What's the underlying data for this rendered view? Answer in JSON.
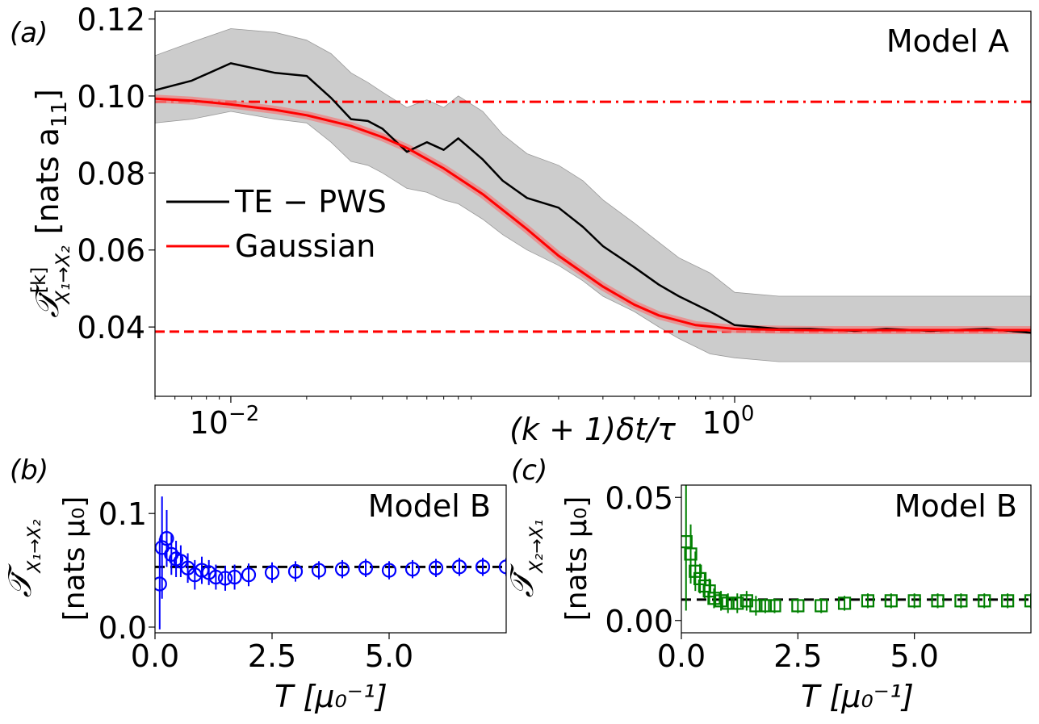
{
  "colors": {
    "te_pws": "#000000",
    "te_pws_band": "#b0b0b0",
    "gaussian": "#ff0000",
    "gaussian_band": "#f08080",
    "panel_b_points": "#0000ff",
    "panel_c_points": "#008000",
    "reference_dashed": "#000000"
  },
  "chart_data": [
    {
      "type": "line",
      "panel_label": "(a)",
      "model_label": "Model A",
      "xlabel": "(k + 1)δt/τ",
      "ylabel_main": "𝒯̇",
      "ylabel_sup": "[k]",
      "ylabel_sub": "X₁→X₂",
      "ylabel_unit": "[nats a",
      "ylabel_unit_sub": "11",
      "ylabel_unit_end": "]",
      "x_scale": "log",
      "xlim": [
        0.005,
        15
      ],
      "ylim": [
        0.022,
        0.122
      ],
      "x_ticks": [
        {
          "value": 0.01,
          "base": "10",
          "exp": "−2"
        },
        {
          "value": 1,
          "base": "10",
          "exp": "0"
        }
      ],
      "y_ticks": [
        "0.04",
        "0.06",
        "0.08",
        "0.10",
        "0.12"
      ],
      "legend_location": "center-left",
      "series": [
        {
          "name": "TE − PWS",
          "x": [
            0.005,
            0.007,
            0.01,
            0.015,
            0.02,
            0.025,
            0.03,
            0.035,
            0.04,
            0.05,
            0.06,
            0.07,
            0.08,
            0.1,
            0.12,
            0.15,
            0.2,
            0.25,
            0.3,
            0.4,
            0.5,
            0.6,
            0.8,
            1.0,
            1.5,
            2,
            3,
            4,
            6,
            10,
            15
          ],
          "y": [
            0.1015,
            0.104,
            0.1085,
            0.106,
            0.1052,
            0.0995,
            0.094,
            0.0935,
            0.0915,
            0.0855,
            0.088,
            0.086,
            0.089,
            0.0835,
            0.078,
            0.0735,
            0.071,
            0.066,
            0.061,
            0.0555,
            0.051,
            0.048,
            0.044,
            0.0405,
            0.0395,
            0.0395,
            0.039,
            0.0395,
            0.039,
            0.0395,
            0.0385
          ],
          "band_low": [
            0.093,
            0.094,
            0.096,
            0.094,
            0.093,
            0.088,
            0.083,
            0.082,
            0.08,
            0.076,
            0.075,
            0.073,
            0.072,
            0.068,
            0.064,
            0.06,
            0.056,
            0.052,
            0.048,
            0.044,
            0.04,
            0.037,
            0.033,
            0.032,
            0.031,
            0.031,
            0.031,
            0.031,
            0.031,
            0.031,
            0.031
          ],
          "band_high": [
            0.1105,
            0.114,
            0.1175,
            0.1165,
            0.1145,
            0.111,
            0.106,
            0.1035,
            0.101,
            0.097,
            0.099,
            0.097,
            0.1,
            0.096,
            0.09,
            0.085,
            0.082,
            0.078,
            0.073,
            0.067,
            0.062,
            0.058,
            0.054,
            0.049,
            0.048,
            0.048,
            0.048,
            0.048,
            0.048,
            0.048,
            0.048
          ]
        },
        {
          "name": "Gaussian",
          "x": [
            0.005,
            0.007,
            0.01,
            0.015,
            0.02,
            0.03,
            0.04,
            0.05,
            0.07,
            0.1,
            0.15,
            0.2,
            0.3,
            0.4,
            0.5,
            0.7,
            1.0,
            1.5,
            2,
            3,
            5,
            10,
            15
          ],
          "y": [
            0.0993,
            0.0988,
            0.0978,
            0.0964,
            0.095,
            0.0922,
            0.0893,
            0.0865,
            0.0812,
            0.0745,
            0.0654,
            0.0585,
            0.0505,
            0.0458,
            0.043,
            0.0405,
            0.0395,
            0.0393,
            0.0392,
            0.0392,
            0.0392,
            0.0392,
            0.0392
          ]
        }
      ],
      "reference_lines": [
        {
          "style": "dashdot",
          "y": 0.0985
        },
        {
          "style": "dashed",
          "y": 0.0388
        }
      ]
    },
    {
      "type": "scatter",
      "panel_label": "(b)",
      "model_label": "Model B",
      "xlabel": "T [μ₀⁻¹]",
      "ylabel_main": "𝒯̇",
      "ylabel_sub": "X₁→X₂",
      "ylabel_unit": "[nats μ₀]",
      "xlim": [
        0,
        7.5
      ],
      "ylim": [
        -0.005,
        0.125
      ],
      "x_ticks": [
        "0.0",
        "2.5",
        "5.0"
      ],
      "y_ticks": [
        "0.0",
        "0.1"
      ],
      "marker": "circle",
      "reference_y": 0.053,
      "x": [
        0.1,
        0.15,
        0.25,
        0.35,
        0.45,
        0.55,
        0.7,
        0.85,
        1.0,
        1.15,
        1.3,
        1.5,
        1.7,
        2.0,
        2.5,
        3.0,
        3.5,
        4.0,
        4.5,
        5.0,
        5.5,
        6.0,
        6.5,
        7.0,
        7.5
      ],
      "y": [
        0.038,
        0.07,
        0.078,
        0.064,
        0.06,
        0.058,
        0.052,
        0.046,
        0.05,
        0.048,
        0.044,
        0.043,
        0.044,
        0.046,
        0.048,
        0.049,
        0.05,
        0.051,
        0.052,
        0.05,
        0.051,
        0.052,
        0.053,
        0.053,
        0.053
      ],
      "yerr": [
        0.04,
        0.045,
        0.025,
        0.018,
        0.016,
        0.014,
        0.013,
        0.013,
        0.012,
        0.011,
        0.011,
        0.011,
        0.011,
        0.01,
        0.009,
        0.009,
        0.008,
        0.008,
        0.008,
        0.008,
        0.008,
        0.008,
        0.008,
        0.008,
        0.008
      ]
    },
    {
      "type": "scatter",
      "panel_label": "(c)",
      "model_label": "Model B",
      "xlabel": "T [μ₀⁻¹]",
      "ylabel_main": "𝒯̇",
      "ylabel_sub": "X₂→X₁",
      "ylabel_unit": "[nats μ₀]",
      "xlim": [
        0,
        7.5
      ],
      "ylim": [
        -0.005,
        0.055
      ],
      "x_ticks": [
        "0.0",
        "2.5",
        "5.0"
      ],
      "y_ticks": [
        "0.00",
        "0.05"
      ],
      "marker": "square",
      "reference_y": 0.0085,
      "x": [
        0.1,
        0.2,
        0.3,
        0.4,
        0.5,
        0.6,
        0.7,
        0.85,
        1.0,
        1.2,
        1.4,
        1.6,
        1.8,
        2.0,
        2.5,
        3.0,
        3.5,
        4.0,
        4.5,
        5.0,
        5.5,
        6.0,
        6.5,
        7.0,
        7.5
      ],
      "y": [
        0.032,
        0.027,
        0.02,
        0.017,
        0.014,
        0.012,
        0.009,
        0.008,
        0.007,
        0.007,
        0.008,
        0.006,
        0.006,
        0.006,
        0.006,
        0.006,
        0.007,
        0.008,
        0.008,
        0.008,
        0.008,
        0.008,
        0.008,
        0.008,
        0.008
      ],
      "yerr": [
        0.028,
        0.012,
        0.008,
        0.006,
        0.005,
        0.005,
        0.004,
        0.004,
        0.004,
        0.004,
        0.004,
        0.004,
        0.003,
        0.003,
        0.003,
        0.003,
        0.003,
        0.003,
        0.003,
        0.003,
        0.003,
        0.003,
        0.003,
        0.003,
        0.003
      ]
    }
  ]
}
